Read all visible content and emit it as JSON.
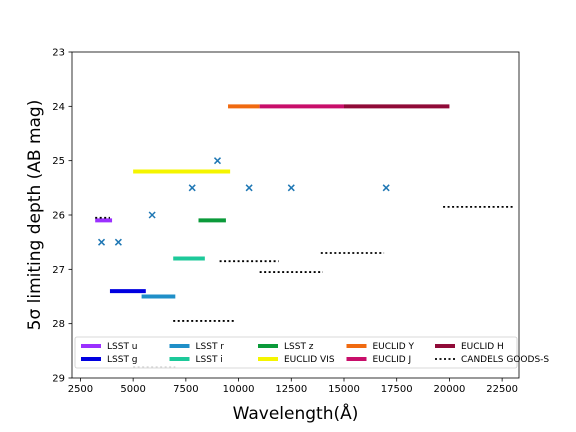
{
  "chart_data": {
    "type": "line",
    "xlabel": "Wavelength(Å)",
    "ylabel": "5σ limiting depth (AB mag)",
    "xlim": [
      2100,
      23300
    ],
    "ylim": [
      29,
      23
    ],
    "y_inverted": true,
    "grid": false,
    "legend_placement": "bottom",
    "x_ticks": [
      2500,
      5000,
      7500,
      10000,
      12500,
      15000,
      17500,
      20000,
      22500
    ],
    "x_tick_labels": [
      "2500",
      "5000",
      "7500",
      "10000",
      "12500",
      "15000",
      "17500",
      "20000",
      "22500"
    ],
    "y_ticks": [
      23,
      24,
      25,
      26,
      27,
      28,
      29
    ],
    "y_tick_labels": [
      "23",
      "24",
      "25",
      "26",
      "27",
      "28",
      "29"
    ],
    "series": [
      {
        "name": "LSST u",
        "color": "#9b30ff",
        "style": "solid",
        "x": [
          3200,
          4000
        ],
        "y": [
          26.1,
          26.1
        ]
      },
      {
        "name": "LSST g",
        "color": "#0000e0",
        "style": "solid",
        "x": [
          3900,
          5600
        ],
        "y": [
          27.4,
          27.4
        ]
      },
      {
        "name": "LSST r",
        "color": "#1f8fc8",
        "style": "solid",
        "x": [
          5400,
          7000
        ],
        "y": [
          27.5,
          27.5
        ]
      },
      {
        "name": "LSST i",
        "color": "#1dc99a",
        "style": "solid",
        "x": [
          6900,
          8400
        ],
        "y": [
          26.8,
          26.8
        ]
      },
      {
        "name": "LSST z",
        "color": "#0b9a3a",
        "style": "solid",
        "x": [
          8100,
          9400
        ],
        "y": [
          26.1,
          26.1
        ]
      },
      {
        "name": "EUCLID VIS",
        "color": "#f5f500",
        "style": "solid",
        "x": [
          5000,
          9600
        ],
        "y": [
          25.2,
          25.2
        ]
      },
      {
        "name": "EUCLID Y",
        "color": "#f06a10",
        "style": "solid",
        "x": [
          9500,
          11000
        ],
        "y": [
          24.0,
          24.0
        ]
      },
      {
        "name": "EUCLID J",
        "color": "#c80e6a",
        "style": "solid",
        "x": [
          11000,
          15000
        ],
        "y": [
          24.0,
          24.0
        ]
      },
      {
        "name": "EUCLID H",
        "color": "#900a38",
        "style": "solid",
        "x": [
          15000,
          20000
        ],
        "y": [
          24.0,
          24.0
        ]
      },
      {
        "name": "CANDELS GOODS-S",
        "color": "#000000",
        "style": "dotted",
        "segments": [
          {
            "x": [
              3200,
              3900
            ],
            "y": [
              26.05,
              26.05
            ]
          },
          {
            "x": [
              5000,
              7000
            ],
            "y": [
              28.8,
              28.8
            ]
          },
          {
            "x": [
              6900,
              9800
            ],
            "y": [
              27.95,
              27.95
            ]
          },
          {
            "x": [
              9100,
              11900
            ],
            "y": [
              26.85,
              26.85
            ]
          },
          {
            "x": [
              11000,
              14000
            ],
            "y": [
              27.05,
              27.05
            ]
          },
          {
            "x": [
              13900,
              16900
            ],
            "y": [
              26.7,
              26.7
            ]
          },
          {
            "x": [
              19700,
              23000
            ],
            "y": [
              25.85,
              25.85
            ]
          }
        ]
      }
    ],
    "points": {
      "marker": "x",
      "color": "#1f77b4",
      "x": [
        3500,
        4300,
        5900,
        7800,
        9000,
        10500,
        12500,
        17000
      ],
      "y": [
        26.5,
        26.5,
        26.0,
        25.5,
        25.0,
        25.5,
        25.5,
        25.5
      ]
    },
    "legend_order": [
      "LSST u",
      "LSST g",
      "LSST r",
      "LSST i",
      "LSST z",
      "EUCLID VIS",
      "EUCLID Y",
      "EUCLID J",
      "EUCLID H",
      "CANDELS GOODS-S"
    ]
  }
}
